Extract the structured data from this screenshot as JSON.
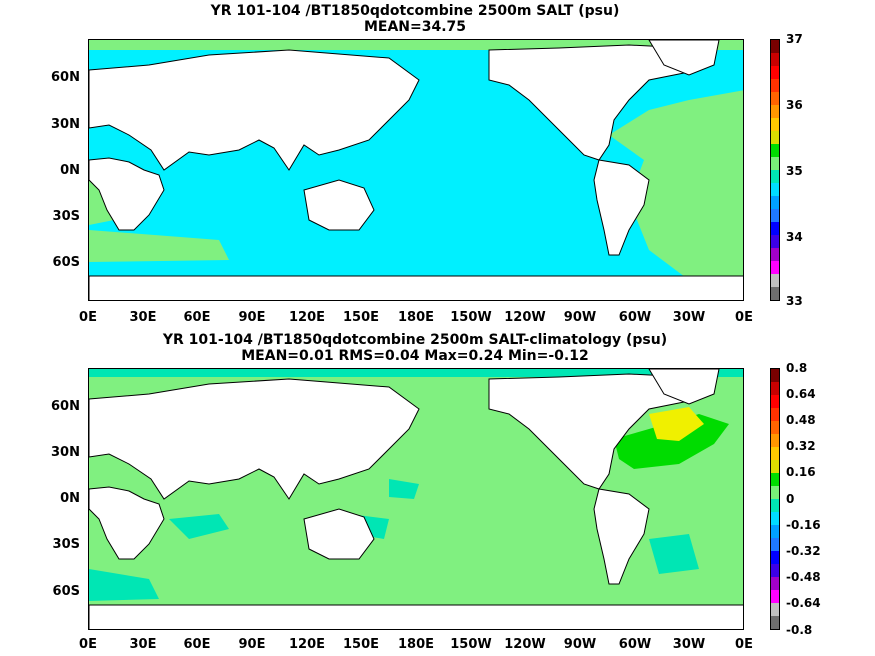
{
  "panel_top": {
    "title_line1": "YR 101-104 /BT1850qdotcombine 2500m SALT (psu)",
    "title_line2": "MEAN=34.75",
    "lat_labels": [
      "60N",
      "30N",
      "0N",
      "30S",
      "60S"
    ],
    "lon_labels": [
      "0E",
      "30E",
      "60E",
      "90E",
      "120E",
      "150E",
      "180E",
      "150W",
      "120W",
      "90W",
      "60W",
      "30W",
      "0E"
    ],
    "colorbar_labels": [
      "37",
      "36",
      "35",
      "34",
      "33"
    ],
    "colorbar_colors": [
      "#6e6e6e",
      "#c0c0c0",
      "#ff00ff",
      "#a000c8",
      "#3c00e6",
      "#0000ff",
      "#1e78ff",
      "#00a0ff",
      "#00dcff",
      "#00e6b4",
      "#78f078",
      "#00dc00",
      "#dcdc00",
      "#ffc800",
      "#ff9600",
      "#ff6400",
      "#ff3200",
      "#ff0000",
      "#c80000",
      "#780000"
    ],
    "field_colors": {
      "main": "#00f0ff",
      "atlantic": "#80f080",
      "land": "#ffffff"
    }
  },
  "panel_bottom": {
    "title_line1": "YR 101-104 /BT1850qdotcombine 2500m SALT-climatology (psu)",
    "title_line2": "MEAN=0.01   RMS=0.04   Max=0.24   Min=-0.12",
    "lat_labels": [
      "60N",
      "30N",
      "0N",
      "30S",
      "60S"
    ],
    "lon_labels": [
      "0E",
      "30E",
      "60E",
      "90E",
      "120E",
      "150E",
      "180E",
      "150W",
      "120W",
      "90W",
      "60W",
      "30W",
      "0E"
    ],
    "colorbar_labels": [
      "0.8",
      "0.64",
      "0.48",
      "0.32",
      "0.16",
      "0",
      "-0.16",
      "-0.32",
      "-0.48",
      "-0.64",
      "-0.8"
    ],
    "colorbar_colors": [
      "#6e6e6e",
      "#c0c0c0",
      "#ff00ff",
      "#a000c8",
      "#3c00e6",
      "#0000ff",
      "#1e78ff",
      "#00a0ff",
      "#00dcff",
      "#00e6b4",
      "#78f078",
      "#00dc00",
      "#dcdc00",
      "#ffc800",
      "#ff9600",
      "#ff6400",
      "#ff3200",
      "#ff0000",
      "#c80000",
      "#780000"
    ],
    "field_colors": {
      "main": "#80f080",
      "cyan": "#00e6b4",
      "yellow": "#f0f000",
      "green": "#00dc00",
      "land": "#ffffff"
    }
  }
}
